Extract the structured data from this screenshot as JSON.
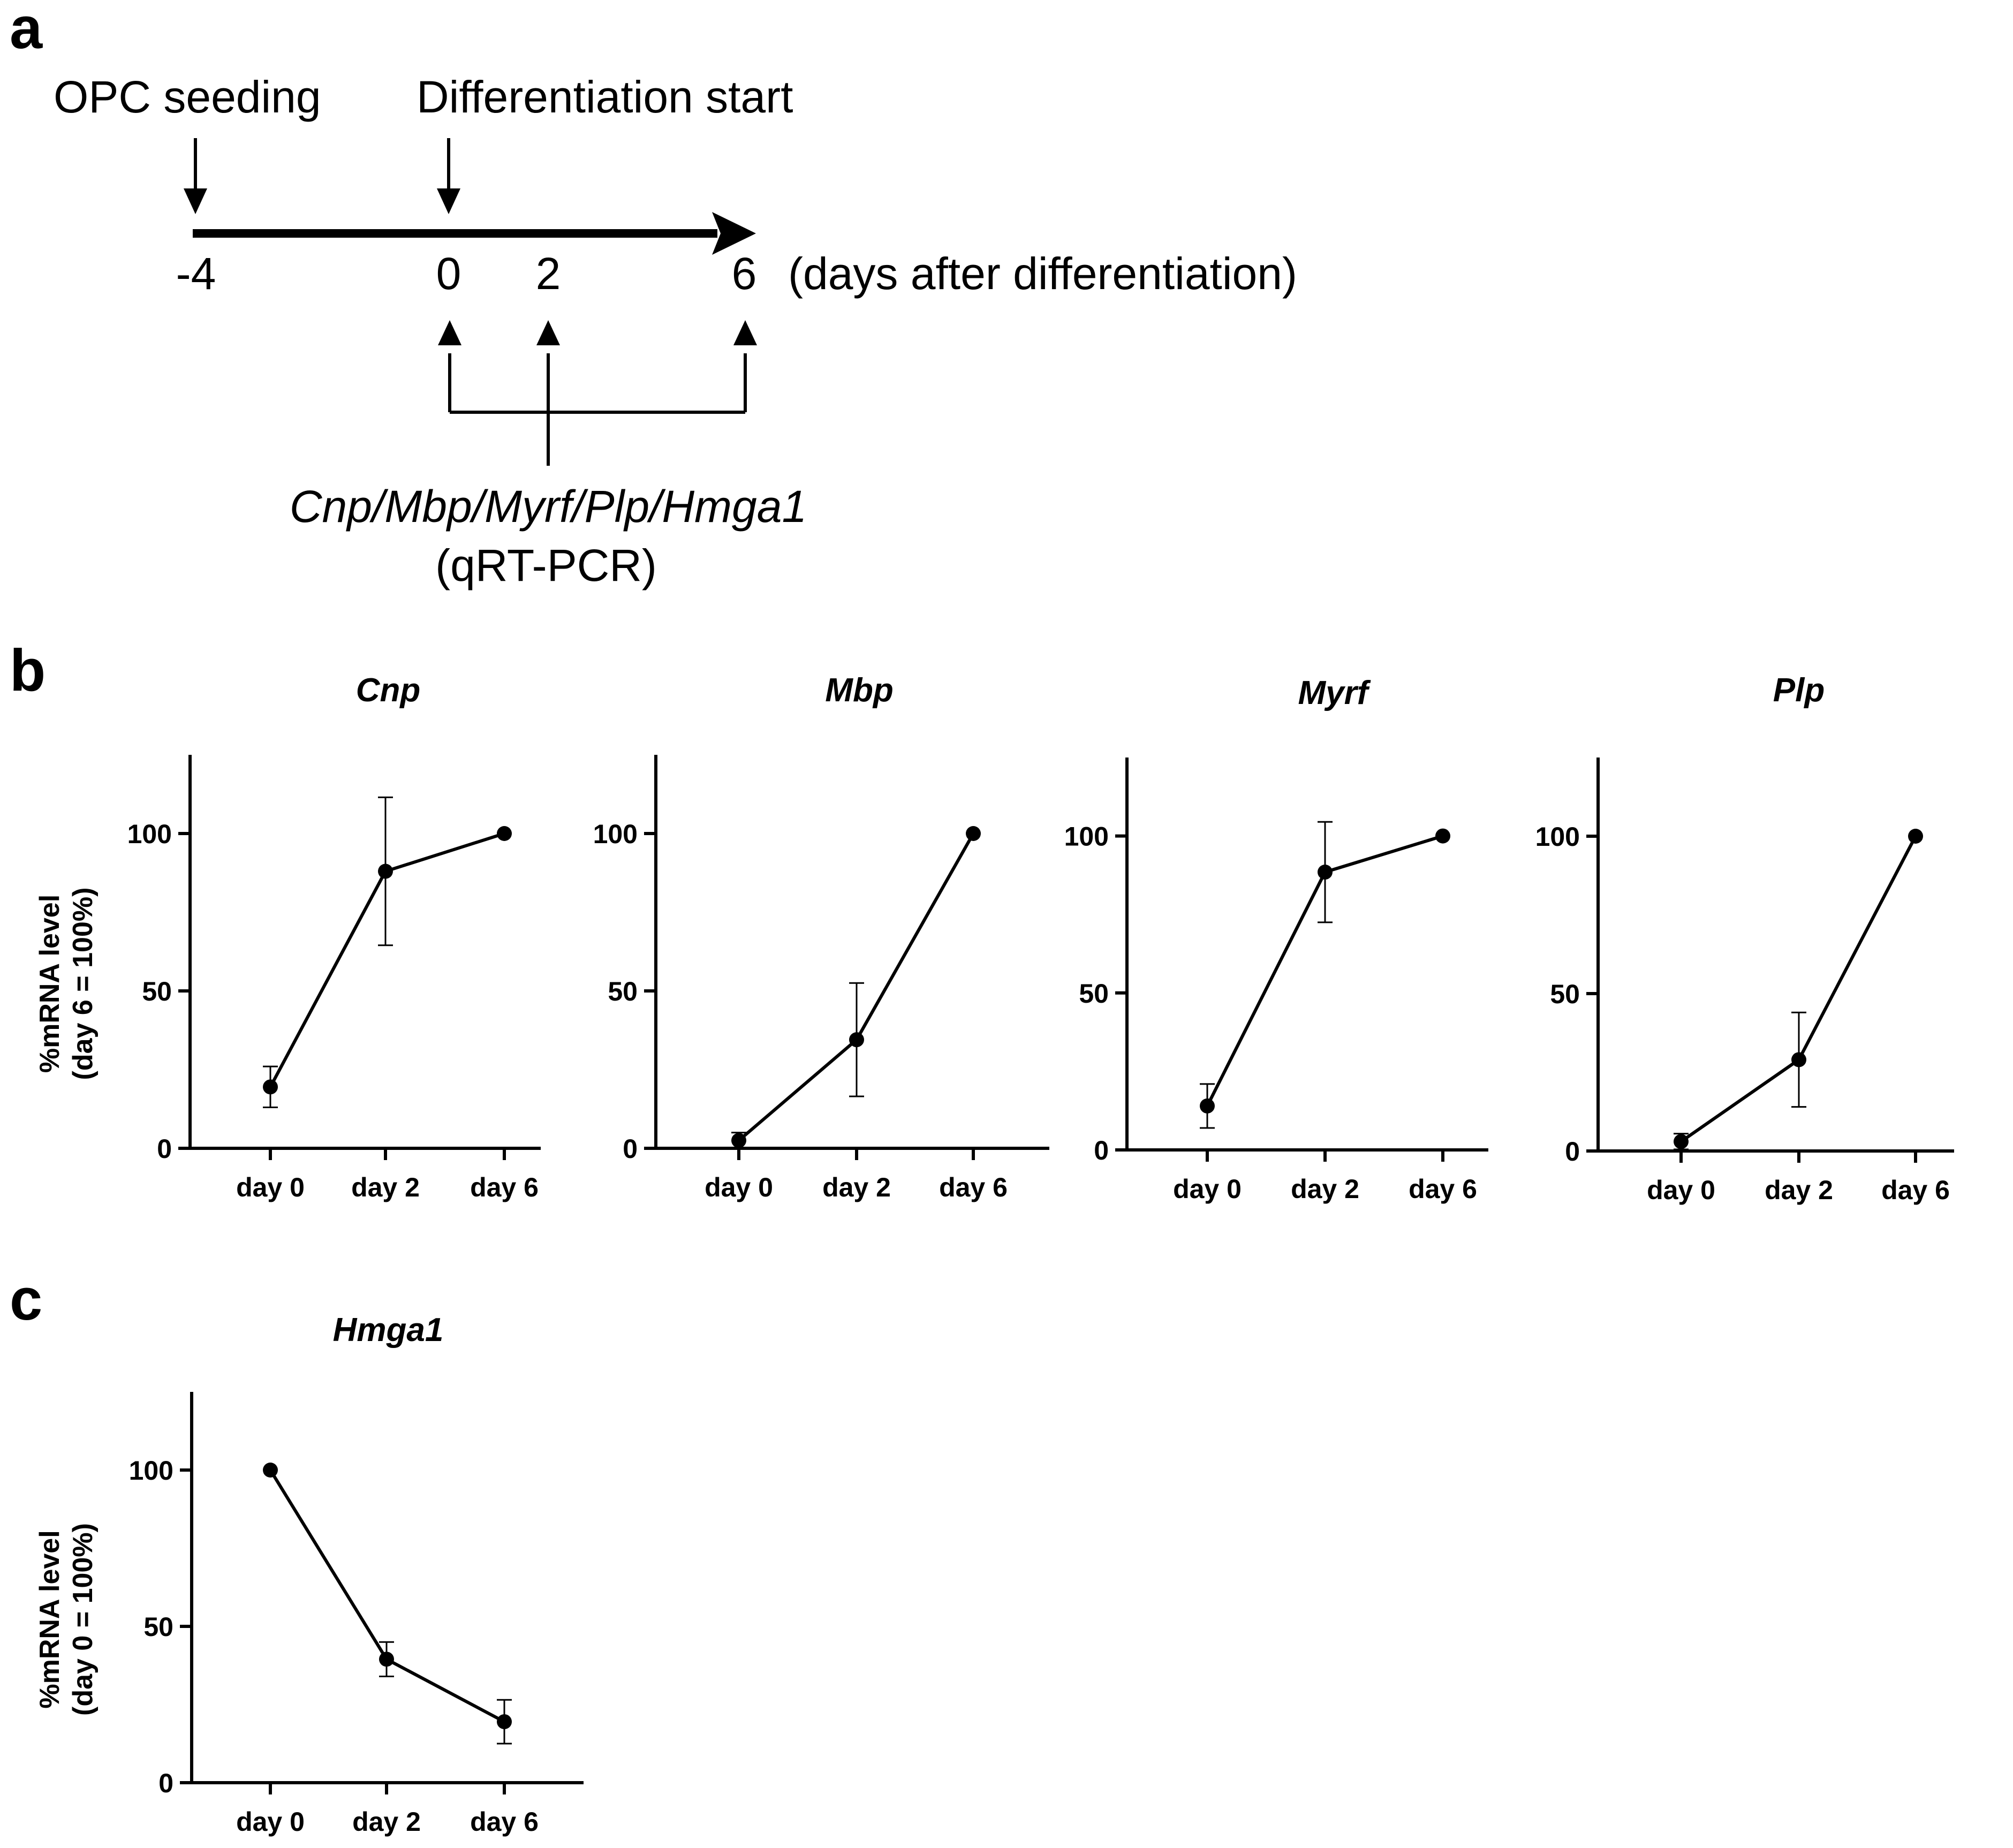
{
  "panels": {
    "a": {
      "letter": "a"
    },
    "b": {
      "letter": "b"
    },
    "c": {
      "letter": "c"
    }
  },
  "timeline": {
    "events": [
      "OPC seeding",
      "Differentiation start"
    ],
    "ticks": [
      "-4",
      "0",
      "2",
      "6"
    ],
    "unit_label": "(days after differentiation)",
    "genes_label": "Cnp/Mbp/Myrf/Plp/Hmga1",
    "method_label": "(qRT-PCR)"
  },
  "chart_data": [
    {
      "type": "line",
      "panel": "b",
      "title": "Cnp",
      "categories": [
        "day 0",
        "day 2",
        "day 6"
      ],
      "values": [
        19.5,
        88,
        100
      ],
      "error": [
        6.5,
        23.5,
        0
      ],
      "ylabel_lines": [
        "%mRNA level",
        "(day 6 = 100%)"
      ],
      "yticks": [
        0,
        50,
        100
      ],
      "ylim": [
        0,
        125
      ],
      "grid": false
    },
    {
      "type": "line",
      "panel": "b",
      "title": "Mbp",
      "categories": [
        "day 0",
        "day 2",
        "day 6"
      ],
      "values": [
        2.5,
        34.5,
        100
      ],
      "error": [
        2.5,
        18,
        0
      ],
      "yticks": [
        0,
        50,
        100
      ],
      "ylim": [
        0,
        125
      ],
      "grid": false
    },
    {
      "type": "line",
      "panel": "b",
      "title": "Myrf",
      "categories": [
        "day 0",
        "day 2",
        "day 6"
      ],
      "values": [
        14,
        88.5,
        100
      ],
      "error": [
        7,
        16,
        0
      ],
      "yticks": [
        0,
        50,
        100
      ],
      "ylim": [
        0,
        125
      ],
      "grid": false
    },
    {
      "type": "line",
      "panel": "b",
      "title": "Plp",
      "categories": [
        "day 0",
        "day 2",
        "day 6"
      ],
      "values": [
        3,
        29,
        100
      ],
      "error": [
        2.5,
        15,
        0
      ],
      "yticks": [
        0,
        50,
        100
      ],
      "ylim": [
        0,
        125
      ],
      "grid": false
    },
    {
      "type": "line",
      "panel": "c",
      "title": "Hmga1",
      "categories": [
        "day 0",
        "day 2",
        "day 6"
      ],
      "values": [
        100,
        39.5,
        19.5
      ],
      "error": [
        0,
        5.5,
        7
      ],
      "ylabel_lines": [
        "%mRNA level",
        "(day 0 = 100%)"
      ],
      "yticks": [
        0,
        50,
        100
      ],
      "ylim": [
        0,
        125
      ],
      "grid": false
    }
  ]
}
